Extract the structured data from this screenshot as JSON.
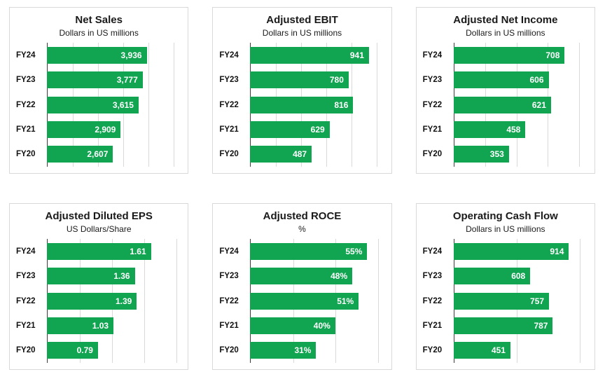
{
  "page": {
    "background": "#ffffff",
    "layout": "2x3 grid of horizontal bar chart panels"
  },
  "colors": {
    "bar": "#12a551",
    "grid": "#d9d9d9",
    "axis": "#3a3a3a",
    "panel_border": "#d9d9d9",
    "text": "#1a1a1a",
    "value_label": "#ffffff"
  },
  "chart_data": [
    {
      "type": "bar",
      "orientation": "horizontal",
      "title": "Net Sales",
      "subtitle": "Dollars in US millions",
      "categories": [
        "FY24",
        "FY23",
        "FY22",
        "FY21",
        "FY20"
      ],
      "values": [
        3936,
        3777,
        3615,
        2909,
        2607
      ],
      "labels": [
        "3,936",
        "3,777",
        "3,615",
        "2,909",
        "2,607"
      ],
      "axis_min": 0,
      "axis_max": 5200,
      "grid_step": 1000,
      "grid_on": true,
      "legend": "none"
    },
    {
      "type": "bar",
      "orientation": "horizontal",
      "title": "Adjusted EBIT",
      "subtitle": "Dollars in US millions",
      "categories": [
        "FY24",
        "FY23",
        "FY22",
        "FY21",
        "FY20"
      ],
      "values": [
        941,
        780,
        816,
        629,
        487
      ],
      "labels": [
        "941",
        "780",
        "816",
        "629",
        "487"
      ],
      "axis_min": 0,
      "axis_max": 1045,
      "grid_step": 200,
      "grid_on": true,
      "legend": "none"
    },
    {
      "type": "bar",
      "orientation": "horizontal",
      "title": "Adjusted Net Income",
      "subtitle": "Dollars in US millions",
      "categories": [
        "FY24",
        "FY23",
        "FY22",
        "FY21",
        "FY20"
      ],
      "values": [
        708,
        606,
        621,
        458,
        353
      ],
      "labels": [
        "708",
        "606",
        "621",
        "458",
        "353"
      ],
      "axis_min": 0,
      "axis_max": 840,
      "grid_step": 200,
      "grid_on": true,
      "legend": "none"
    },
    {
      "type": "bar",
      "orientation": "horizontal",
      "title": "Adjusted Diluted EPS",
      "subtitle": "US Dollars/Share",
      "categories": [
        "FY24",
        "FY23",
        "FY22",
        "FY21",
        "FY20"
      ],
      "values": [
        1.61,
        1.36,
        1.39,
        1.03,
        0.79
      ],
      "labels": [
        "1.61",
        "1.36",
        "1.39",
        "1.03",
        "0.79"
      ],
      "axis_min": 0,
      "axis_max": 2.04,
      "grid_step": 0.5,
      "grid_on": true,
      "legend": "none"
    },
    {
      "type": "bar",
      "orientation": "horizontal",
      "title": "Adjusted ROCE",
      "subtitle": "%",
      "categories": [
        "FY24",
        "FY23",
        "FY22",
        "FY21",
        "FY20"
      ],
      "values": [
        55,
        48,
        51,
        40,
        31
      ],
      "labels": [
        "55%",
        "48%",
        "51%",
        "40%",
        "31%"
      ],
      "axis_min": 0,
      "axis_max": 62,
      "grid_step": 20,
      "grid_on": true,
      "legend": "none"
    },
    {
      "type": "bar",
      "orientation": "horizontal",
      "title": "Operating Cash Flow",
      "subtitle": "Dollars in US millions",
      "categories": [
        "FY24",
        "FY23",
        "FY22",
        "FY21",
        "FY20"
      ],
      "values": [
        914,
        608,
        757,
        787,
        451
      ],
      "labels": [
        "914",
        "608",
        "757",
        "787",
        "451"
      ],
      "axis_min": 0,
      "axis_max": 1045,
      "grid_step": 500,
      "grid_on": true,
      "legend": "none"
    }
  ]
}
